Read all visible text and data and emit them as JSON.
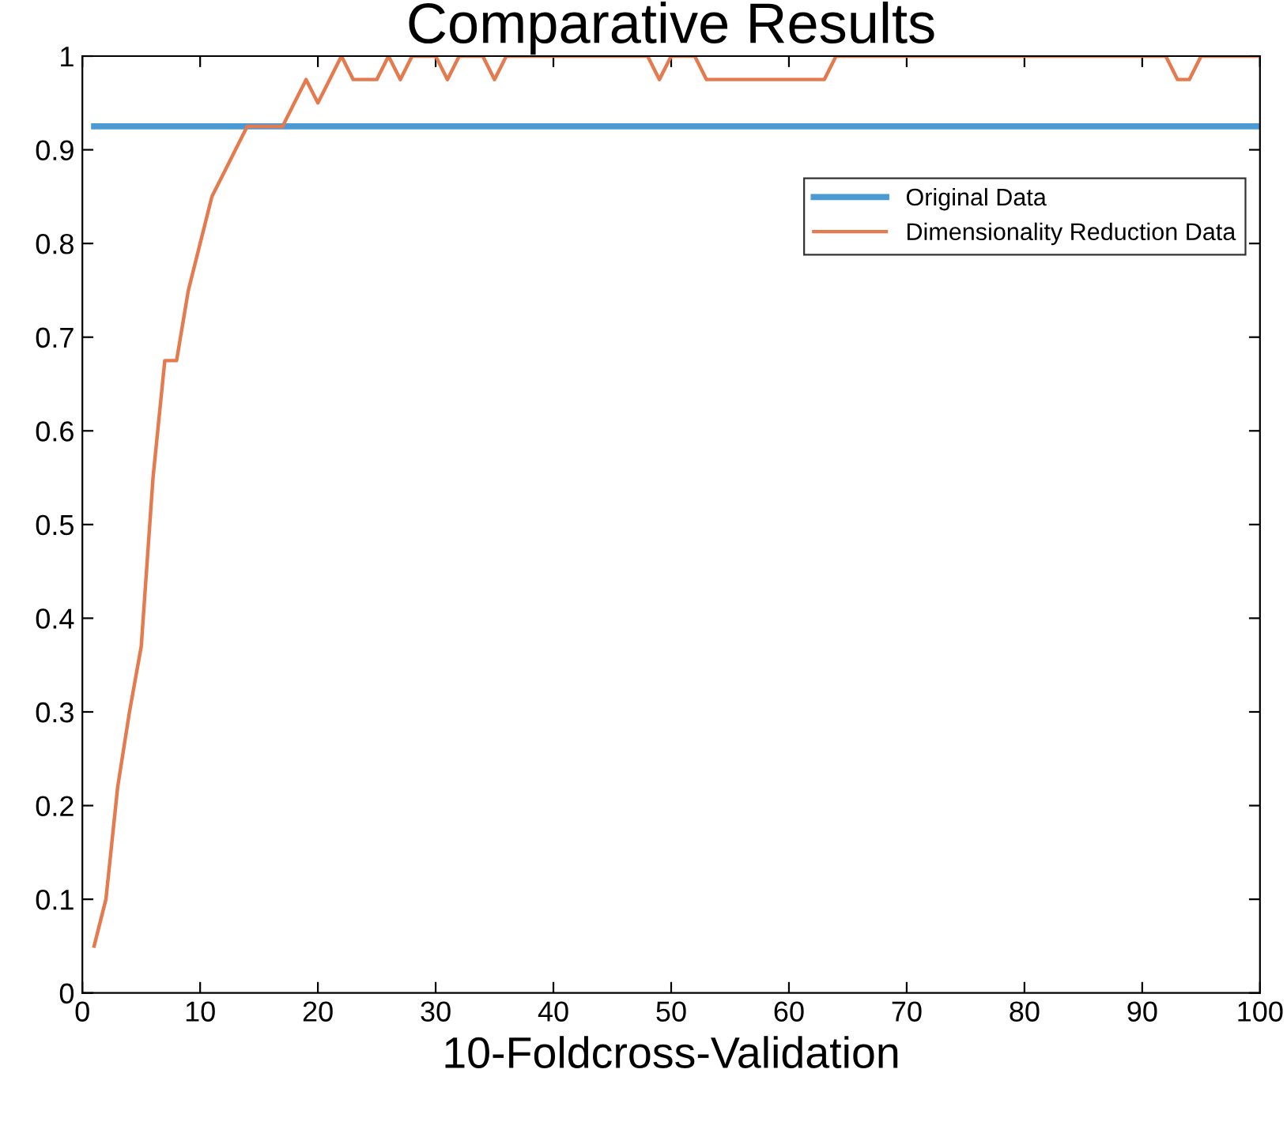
{
  "chart_data": {
    "type": "line",
    "title": "Comparative Results",
    "xlabel": "10-Foldcross-Validation",
    "x": [
      1,
      2,
      3,
      4,
      5,
      6,
      7,
      8,
      9,
      10,
      11,
      12,
      13,
      14,
      15,
      16,
      17,
      18,
      19,
      20,
      21,
      22,
      23,
      24,
      25,
      26,
      27,
      28,
      29,
      30,
      31,
      32,
      33,
      34,
      35,
      36,
      37,
      38,
      39,
      40,
      41,
      42,
      43,
      44,
      45,
      46,
      47,
      48,
      49,
      50,
      51,
      52,
      53,
      54,
      55,
      56,
      57,
      58,
      59,
      60,
      61,
      62,
      63,
      64,
      65,
      66,
      67,
      68,
      69,
      70,
      71,
      72,
      73,
      74,
      75,
      76,
      77,
      78,
      79,
      80,
      81,
      82,
      83,
      84,
      85,
      86,
      87,
      88,
      89,
      90,
      91,
      92,
      93,
      94,
      95,
      96,
      97,
      98,
      99,
      100
    ],
    "series": [
      {
        "name": "Original Data",
        "color": "#4a9bd4",
        "values": [
          0.925,
          0.925,
          0.925,
          0.925,
          0.925,
          0.925,
          0.925,
          0.925,
          0.925,
          0.925,
          0.925,
          0.925,
          0.925,
          0.925,
          0.925,
          0.925,
          0.925,
          0.925,
          0.925,
          0.925,
          0.925,
          0.925,
          0.925,
          0.925,
          0.925,
          0.925,
          0.925,
          0.925,
          0.925,
          0.925,
          0.925,
          0.925,
          0.925,
          0.925,
          0.925,
          0.925,
          0.925,
          0.925,
          0.925,
          0.925,
          0.925,
          0.925,
          0.925,
          0.925,
          0.925,
          0.925,
          0.925,
          0.925,
          0.925,
          0.925,
          0.925,
          0.925,
          0.925,
          0.925,
          0.925,
          0.925,
          0.925,
          0.925,
          0.925,
          0.925,
          0.925,
          0.925,
          0.925,
          0.925,
          0.925,
          0.925,
          0.925,
          0.925,
          0.925,
          0.925,
          0.925,
          0.925,
          0.925,
          0.925,
          0.925,
          0.925,
          0.925,
          0.925,
          0.925,
          0.925,
          0.925,
          0.925,
          0.925,
          0.925,
          0.925,
          0.925,
          0.925,
          0.925,
          0.925,
          0.925,
          0.925,
          0.925,
          0.925,
          0.925,
          0.925,
          0.925,
          0.925,
          0.925,
          0.925,
          0.925
        ]
      },
      {
        "name": "Dimensionality Reduction Data",
        "color": "#e57a4e",
        "values": [
          0.05,
          0.1,
          0.22,
          0.3,
          0.37,
          0.55,
          0.675,
          0.675,
          0.75,
          0.8,
          0.85,
          0.875,
          0.9,
          0.925,
          0.925,
          0.925,
          0.925,
          0.95,
          0.975,
          0.95,
          0.975,
          1,
          0.975,
          0.975,
          0.975,
          1,
          0.975,
          1,
          1,
          1,
          0.975,
          1,
          1,
          1,
          0.975,
          1,
          1,
          1,
          1,
          1,
          1,
          1,
          1,
          1,
          1,
          1,
          1,
          1,
          0.975,
          1,
          1,
          1,
          0.975,
          0.975,
          0.975,
          0.975,
          0.975,
          0.975,
          0.975,
          0.975,
          0.975,
          0.975,
          0.975,
          1,
          1,
          1,
          1,
          1,
          1,
          1,
          1,
          1,
          1,
          1,
          1,
          1,
          1,
          1,
          1,
          1,
          1,
          1,
          1,
          1,
          1,
          1,
          1,
          1,
          1,
          1,
          1,
          1,
          0.975,
          0.975,
          1,
          1,
          1,
          1,
          1,
          1
        ]
      }
    ],
    "xlim": [
      0,
      100
    ],
    "ylim": [
      0,
      1
    ],
    "xticks": [
      0,
      10,
      20,
      30,
      40,
      50,
      60,
      70,
      80,
      90,
      100
    ],
    "yticks": [
      0,
      0.1,
      0.2,
      0.3,
      0.4,
      0.5,
      0.6,
      0.7,
      0.8,
      0.9,
      1
    ],
    "legend": "top right",
    "grid": false,
    "marker": "none",
    "line_style": "solid"
  }
}
